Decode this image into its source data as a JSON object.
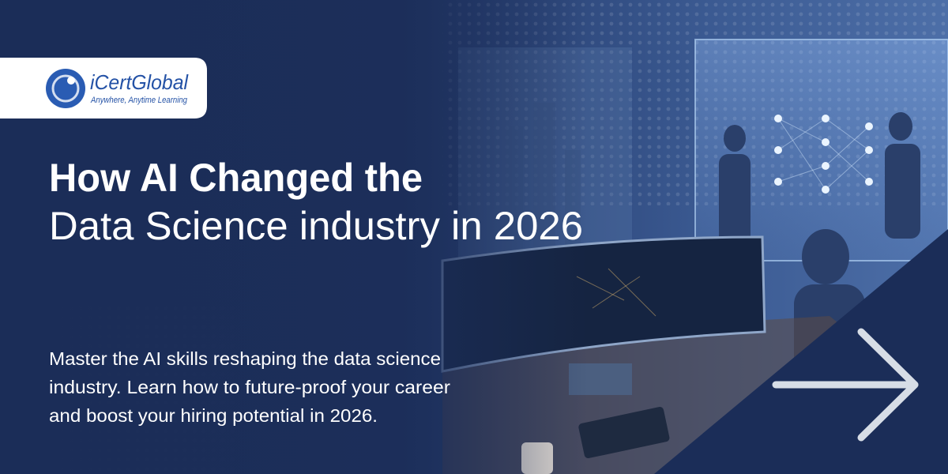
{
  "logo": {
    "name": "iCertGlobal",
    "tagline": "Anywhere, Anytime Learning"
  },
  "headline": {
    "line1": "How AI Changed the",
    "line2": "Data Science industry in 2026"
  },
  "description": [
    "Master the AI skills reshaping the data science",
    "industry. Learn how to future-proof your career",
    "and boost your hiring potential in 2026."
  ]
}
